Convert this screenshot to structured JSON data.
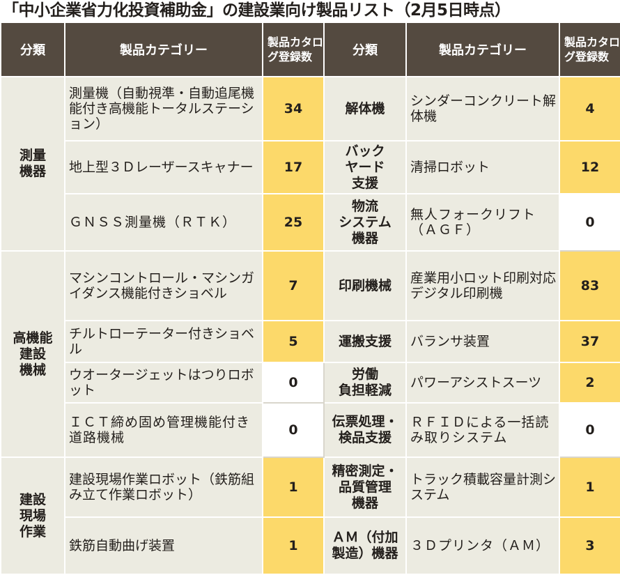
{
  "title": "「中小企業省力化投資補助金」の建設業向け製品リスト（2月5日時点）",
  "headers": {
    "category": "分類",
    "product": "製品カテゴリー",
    "count": "製品カタログ登録数"
  },
  "left_groups": [
    {
      "name": "測量\n機器",
      "items": [
        {
          "product": "測量機（自動視準・自動追尾機能付き高機能トータルステーション）",
          "count": "34",
          "highlight": true
        },
        {
          "product": "地上型３Ｄレーザースキャナー",
          "count": "17",
          "highlight": true
        },
        {
          "product": "ＧＮＳＳ測量機（ＲＴＫ）",
          "count": "25",
          "highlight": true
        }
      ]
    },
    {
      "name": "高機能\n建設\n機械",
      "items": [
        {
          "product": "マシンコントロール・マシンガイダンス機能付きショベル",
          "count": "7",
          "highlight": true
        },
        {
          "product": "チルトローテーター付きショベル",
          "count": "5",
          "highlight": true
        },
        {
          "product": "ウオータージェットはつりロボット",
          "count": "0",
          "highlight": false
        },
        {
          "product": "ＩＣＴ締め固め管理機能付き道路機械",
          "count": "0",
          "highlight": false
        }
      ]
    },
    {
      "name": "建設\n現場\n作業",
      "items": [
        {
          "product": "建設現場作業ロボット（鉄筋組み立て作業ロボット）",
          "count": "1",
          "highlight": true
        },
        {
          "product": "鉄筋自動曲げ装置",
          "count": "1",
          "highlight": true
        }
      ]
    }
  ],
  "right_rows": [
    {
      "category": "解体機",
      "product": "シンダーコンクリート解体機",
      "count": "4",
      "highlight": true
    },
    {
      "category": "バック\nヤード\n支援",
      "product": "清掃ロボット",
      "count": "12",
      "highlight": true
    },
    {
      "category": "物流\nシステム\n機器",
      "product": "無人フォークリフト（ＡＧＦ）",
      "count": "0",
      "highlight": false
    },
    {
      "category": "印刷機械",
      "product": "産業用小ロット印刷対応デジタル印刷機",
      "count": "83",
      "highlight": true
    },
    {
      "category": "運搬支援",
      "product": "バランサ装置",
      "count": "37",
      "highlight": true
    },
    {
      "category": "労働\n負担軽減",
      "product": "パワーアシストスーツ",
      "count": "2",
      "highlight": true
    },
    {
      "category": "伝票処理・\n検品支援",
      "product": "ＲＦＩＤによる一括読み取りシステム",
      "count": "0",
      "highlight": false
    },
    {
      "category": "精密測定・\n品質管理\n機器",
      "product": "トラック積載容量計測システム",
      "count": "1",
      "highlight": true
    },
    {
      "category": "ＡＭ（付加\n製造）機器",
      "product": "３Ｄプリンタ（ＡＭ）",
      "count": "3",
      "highlight": true
    }
  ],
  "colors": {
    "header_bg": "#544a40",
    "row_bg": "#ecebe1",
    "count_highlight": "#fcd96a",
    "count_zero": "#ffffff"
  }
}
